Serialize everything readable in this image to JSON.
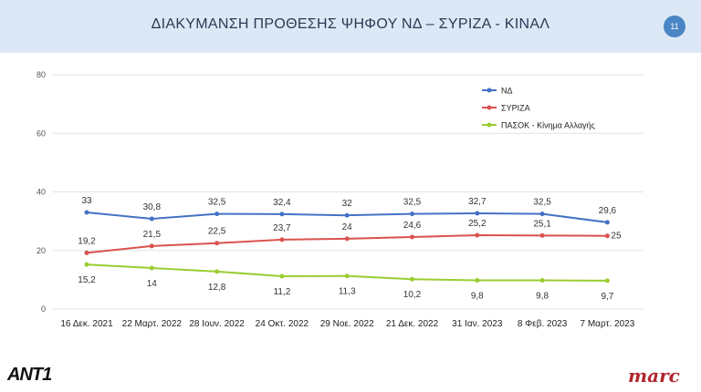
{
  "header": {
    "title": "ΔΙΑΚΥΜΑΝΣΗ ΠΡΟΘΕΣΗΣ ΨΗΦΟΥ ΝΔ – ΣΥΡΙΖΑ - ΚΙΝΑΛ",
    "page_number": "11"
  },
  "logos": {
    "left": "ANT1",
    "right": "marc"
  },
  "colors": {
    "header_bg": "#dce8f5",
    "nd": "#4472c4",
    "syriza": "#d9534f",
    "pasok": "#9acd32"
  },
  "chart_data": {
    "type": "line",
    "categories": [
      "16 Δεκ. 2021",
      "22 Μαρτ. 2022",
      "28 Ιουν. 2022",
      "24 Οκτ. 2022",
      "29 Νοε. 2022",
      "21 Δεκ. 2022",
      "31 Ιαν. 2023",
      "8 Φεβ. 2023",
      "7 Μαρτ. 2023"
    ],
    "series": [
      {
        "name": "ΝΔ",
        "color": "#4472c4",
        "values": [
          33,
          30.8,
          32.5,
          32.4,
          32,
          32.5,
          32.7,
          32.5,
          29.6
        ],
        "labels": [
          "33",
          "30,8",
          "32,5",
          "32,4",
          "32",
          "32,5",
          "32,7",
          "32,5",
          "29,6"
        ],
        "label_position": "above"
      },
      {
        "name": "ΣΥΡΙΖΑ",
        "color": "#d9534f",
        "values": [
          19.2,
          21.5,
          22.5,
          23.7,
          24,
          24.6,
          25.2,
          25.1,
          25
        ],
        "labels": [
          "19,2",
          "21,5",
          "22,5",
          "23,7",
          "24",
          "24,6",
          "25,2",
          "25,1",
          "25"
        ],
        "label_position": "above"
      },
      {
        "name": "ΠΑΣΟΚ - Κίνημα Αλλαγής",
        "color": "#9acd32",
        "values": [
          15.2,
          14,
          12.8,
          11.2,
          11.3,
          10.2,
          9.8,
          9.8,
          9.7
        ],
        "labels": [
          "15,2",
          "14",
          "12,8",
          "11,2",
          "11,3",
          "10,2",
          "9,8",
          "9,8",
          "9,7"
        ],
        "label_position": "below"
      }
    ],
    "ylim": [
      0,
      80
    ],
    "yticks": [
      "0",
      "20",
      "40",
      "60",
      "80"
    ],
    "grid": true,
    "legend": "top-right"
  }
}
